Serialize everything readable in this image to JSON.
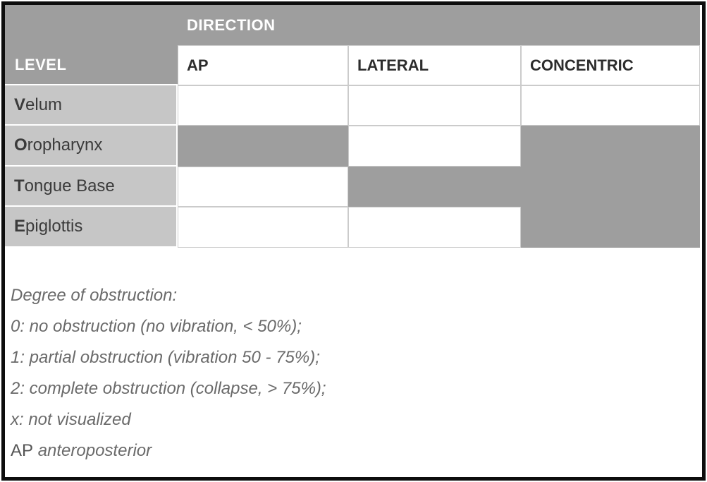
{
  "table": {
    "direction_header": "DIRECTION",
    "level_header": "LEVEL",
    "columns": [
      "AP",
      "LATERAL",
      "CONCENTRIC"
    ],
    "rows": [
      {
        "label": "Velum",
        "initial": "V",
        "rest": "elum",
        "cells": [
          "open",
          "open",
          "open"
        ]
      },
      {
        "label": "Oropharynx",
        "initial": "O",
        "rest": "ropharynx",
        "cells": [
          "shaded",
          "open",
          "shaded"
        ]
      },
      {
        "label": "Tongue Base",
        "initial": "T",
        "rest": "ongue Base",
        "cells": [
          "open",
          "shaded",
          "shaded"
        ]
      },
      {
        "label": "Epiglottis",
        "initial": "E",
        "rest": "piglottis",
        "cells": [
          "open",
          "open",
          "shaded"
        ]
      }
    ]
  },
  "legend": {
    "lines": [
      "Degree of obstruction:",
      "0: no obstruction (no vibration, < 50%);",
      "1: partial obstruction (vibration 50 - 75%);",
      "2: complete obstruction (collapse, > 75%);",
      "x: not visualized"
    ],
    "abbreviation": {
      "term": "AP",
      "definition": "anteroposterior"
    }
  },
  "colors": {
    "header_gray": "#9e9e9e",
    "label_gray": "#c6c6c6",
    "gridline": "#cbcbcb",
    "border_black": "#0d0d0d",
    "legend_text": "#6a6a6a"
  }
}
